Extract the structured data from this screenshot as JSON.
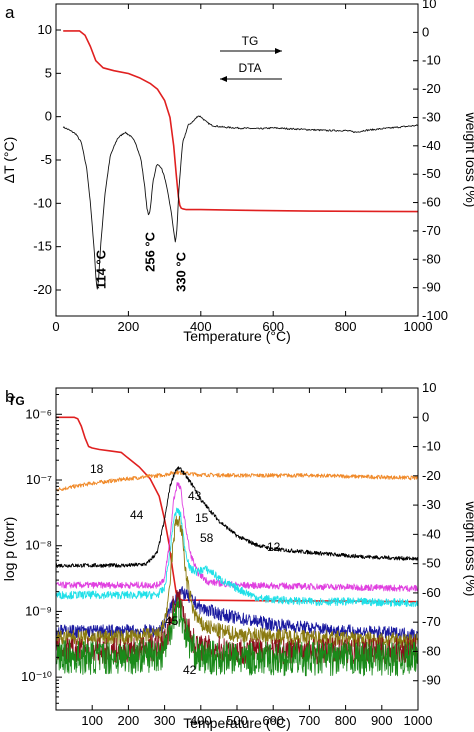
{
  "chart_data": [
    {
      "panel_label": "a",
      "type": "line",
      "xlabel": "Temperature (°C)",
      "ylabel_left": "ΔT (°C)",
      "ylabel_right": "weight loss (%)",
      "xlim": [
        0,
        1000
      ],
      "ylim_left": [
        -23,
        13
      ],
      "ylim_right": [
        -100,
        10
      ],
      "xticks": [
        0,
        200,
        400,
        600,
        800,
        1000
      ],
      "yticks_left": [
        -20,
        -15,
        -10,
        -5,
        0,
        5,
        10
      ],
      "yticks_right": [
        -100,
        -90,
        -80,
        -70,
        -60,
        -50,
        -40,
        -30,
        -20,
        -10,
        0,
        10
      ],
      "legend": [
        {
          "label": "TG",
          "direction": "right"
        },
        {
          "label": "DTA",
          "direction": "left"
        }
      ],
      "annotations": [
        {
          "text": "114 °C",
          "x": 114
        },
        {
          "text": "256 °C",
          "x": 256
        },
        {
          "text": "330 °C",
          "x": 330
        }
      ],
      "series": [
        {
          "name": "TG",
          "axis": "right",
          "color": "#e02020",
          "x": [
            20,
            65,
            80,
            95,
            110,
            130,
            160,
            200,
            230,
            260,
            280,
            300,
            315,
            325,
            332,
            338,
            342,
            346,
            350,
            360,
            400,
            500,
            700,
            1000
          ],
          "y": [
            0.5,
            0.5,
            -1,
            -5,
            -10,
            -12.5,
            -13.5,
            -14.5,
            -16,
            -18,
            -20,
            -24,
            -30,
            -40,
            -50,
            -58,
            -61,
            -62,
            -62.2,
            -62.5,
            -62.5,
            -62.7,
            -63,
            -63.2
          ]
        },
        {
          "name": "DTA",
          "axis": "left",
          "color": "#111111",
          "x": [
            20,
            35,
            55,
            70,
            85,
            95,
            105,
            110,
            114,
            118,
            125,
            135,
            150,
            170,
            190,
            205,
            220,
            235,
            245,
            251,
            256,
            261,
            268,
            278,
            290,
            300,
            310,
            320,
            326,
            330,
            334,
            340,
            350,
            365,
            380,
            392,
            400,
            415,
            430,
            460,
            500,
            560,
            600,
            650,
            700,
            750,
            800,
            830,
            850,
            900,
            950,
            1000
          ],
          "y": [
            -1.2,
            -1.5,
            -2,
            -3,
            -6,
            -10,
            -15,
            -18.5,
            -20,
            -18.5,
            -14,
            -9,
            -4.5,
            -2.5,
            -1.8,
            -2.2,
            -3,
            -5,
            -8,
            -10.5,
            -11.5,
            -10.5,
            -7.5,
            -5.5,
            -5.8,
            -7,
            -9,
            -11.5,
            -13.5,
            -14.5,
            -13,
            -8,
            -3,
            -1,
            -0.5,
            0.1,
            0,
            -0.6,
            -1,
            -1.2,
            -1.3,
            -1.4,
            -1.3,
            -1.4,
            -1.5,
            -1.6,
            -1.6,
            -1.8,
            -1.6,
            -1.4,
            -1.2,
            -1
          ]
        }
      ]
    },
    {
      "panel_label": "b",
      "type": "line",
      "xlabel": "Temperature (°C)",
      "ylabel_left": "log p (torr)",
      "ylabel_right": "weight loss (%)",
      "xlim": [
        0,
        1000
      ],
      "ylim_left_log10": [
        -10.5,
        -5.6
      ],
      "ylim_right": [
        -100,
        10
      ],
      "yscale_left": "log",
      "xticks": [
        100,
        200,
        300,
        400,
        500,
        600,
        700,
        800,
        900,
        1000
      ],
      "yticks_left": [
        "10⁻¹⁰",
        "10⁻⁹",
        "10⁻⁸",
        "10⁻⁷",
        "10⁻⁶"
      ],
      "yticks_left_values": [
        -10,
        -9,
        -8,
        -7,
        -6
      ],
      "yticks_right": [
        -90,
        -80,
        -70,
        -60,
        -50,
        -40,
        -30,
        -20,
        -10,
        0,
        10
      ],
      "series": [
        {
          "name": "TG",
          "axis": "right",
          "color": "#e02020",
          "noise": 0,
          "x": [
            0,
            50,
            60,
            70,
            80,
            90,
            100,
            120,
            150,
            180,
            200,
            230,
            260,
            285,
            300,
            312,
            322,
            332,
            340,
            350,
            370,
            400,
            600,
            800,
            1000
          ],
          "y": [
            0,
            0,
            -0.5,
            -3,
            -7,
            -10,
            -10.5,
            -11,
            -11.5,
            -12,
            -14,
            -17,
            -21,
            -27,
            -35,
            -43,
            -52,
            -60,
            -62,
            -62.5,
            -62.5,
            -62.5,
            -62.7,
            -62.8,
            -63
          ]
        },
        {
          "name": "18",
          "axis": "left",
          "color": "#f08a2a",
          "noise": 0.03,
          "x": [
            0,
            100,
            200,
            300,
            330,
            360,
            400,
            500,
            700,
            850,
            1000
          ],
          "y": [
            -7.15,
            -7.05,
            -6.98,
            -6.92,
            -6.88,
            -6.9,
            -6.92,
            -6.93,
            -6.93,
            -6.95,
            -6.97
          ]
        },
        {
          "name": "44",
          "axis": "left",
          "color": "#000000",
          "noise": 0.03,
          "x": [
            0,
            100,
            200,
            250,
            280,
            300,
            315,
            330,
            340,
            350,
            360,
            380,
            400,
            450,
            500,
            550,
            600,
            700,
            800,
            900,
            1000
          ],
          "y": [
            -8.3,
            -8.3,
            -8.3,
            -8.28,
            -8.1,
            -7.6,
            -7.1,
            -6.85,
            -6.82,
            -6.87,
            -6.95,
            -7.1,
            -7.3,
            -7.62,
            -7.85,
            -7.98,
            -8.05,
            -8.1,
            -8.15,
            -8.18,
            -8.2
          ]
        },
        {
          "name": "43",
          "axis": "left",
          "color": "#e040e0",
          "noise": 0.05,
          "x": [
            0,
            200,
            280,
            300,
            315,
            325,
            335,
            345,
            355,
            370,
            390,
            420,
            500,
            700,
            1000
          ],
          "y": [
            -8.6,
            -8.6,
            -8.6,
            -8.5,
            -7.9,
            -7.3,
            -7.05,
            -7.15,
            -7.6,
            -8.1,
            -8.4,
            -8.55,
            -8.6,
            -8.62,
            -8.65
          ]
        },
        {
          "name": "15",
          "axis": "left",
          "color": "#20e0e8",
          "noise": 0.06,
          "x": [
            0,
            200,
            280,
            300,
            315,
            325,
            335,
            345,
            355,
            370,
            390,
            410,
            430,
            450,
            480,
            520,
            560,
            600,
            700,
            800,
            1000
          ],
          "y": [
            -8.75,
            -8.75,
            -8.75,
            -8.65,
            -8.1,
            -7.6,
            -7.45,
            -7.55,
            -8.0,
            -8.35,
            -8.4,
            -8.35,
            -8.4,
            -8.5,
            -8.6,
            -8.7,
            -8.8,
            -8.82,
            -8.85,
            -8.85,
            -8.87
          ]
        },
        {
          "name": "12",
          "axis": "left",
          "color": "#1a1aa0",
          "noise": 0.1,
          "x": [
            0,
            200,
            280,
            300,
            320,
            340,
            360,
            380,
            400,
            430,
            460,
            500,
            550,
            600,
            700,
            800,
            1000
          ],
          "y": [
            -9.3,
            -9.3,
            -9.3,
            -9.2,
            -8.9,
            -8.7,
            -8.75,
            -8.85,
            -8.95,
            -9.0,
            -9.05,
            -9.1,
            -9.15,
            -9.2,
            -9.25,
            -9.3,
            -9.35
          ]
        },
        {
          "name": "58",
          "axis": "left",
          "color": "#8a7a10",
          "noise": 0.12,
          "x": [
            0,
            200,
            290,
            310,
            320,
            330,
            340,
            350,
            360,
            380,
            400,
            450,
            500,
            700,
            1000
          ],
          "y": [
            -9.4,
            -9.4,
            -9.35,
            -8.9,
            -8.2,
            -7.65,
            -7.6,
            -7.9,
            -8.5,
            -9.0,
            -9.2,
            -9.3,
            -9.35,
            -9.4,
            -9.45
          ]
        },
        {
          "name": "45",
          "axis": "left",
          "color": "#8a0e1a",
          "noise": 0.2,
          "x": [
            0,
            200,
            290,
            310,
            325,
            335,
            345,
            360,
            380,
            400,
            500,
            700,
            1000
          ],
          "y": [
            -9.6,
            -9.6,
            -9.55,
            -9.3,
            -8.9,
            -8.8,
            -8.9,
            -9.2,
            -9.45,
            -9.55,
            -9.6,
            -9.6,
            -9.6
          ]
        },
        {
          "name": "42",
          "axis": "left",
          "color": "#1a8a1a",
          "noise": 0.26,
          "x": [
            0,
            200,
            290,
            310,
            325,
            335,
            345,
            360,
            380,
            400,
            500,
            700,
            1000
          ],
          "y": [
            -9.7,
            -9.7,
            -9.65,
            -9.4,
            -9.05,
            -8.95,
            -9.05,
            -9.35,
            -9.6,
            -9.7,
            -9.72,
            -9.72,
            -9.72
          ]
        }
      ]
    }
  ]
}
